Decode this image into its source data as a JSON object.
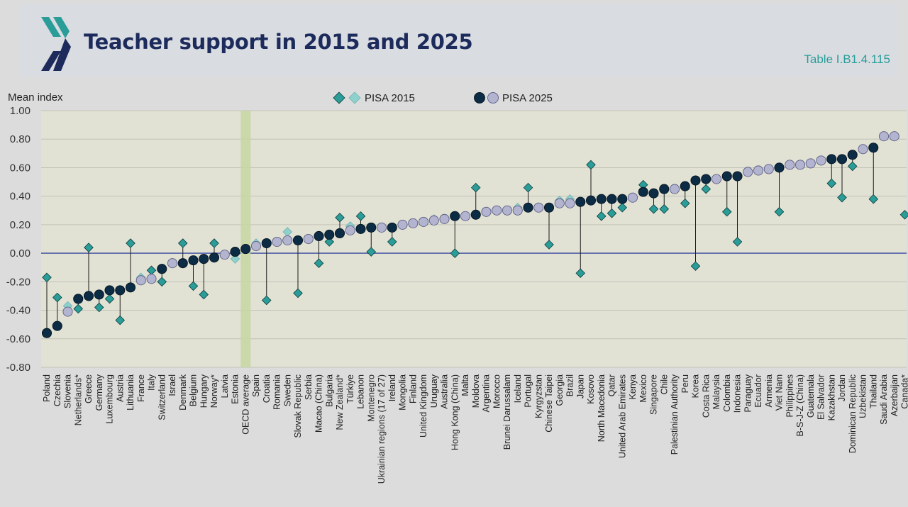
{
  "header": {
    "title": "Teacher support in 2015 and 2025",
    "table_ref": "Table I.B1.4.115"
  },
  "colors": {
    "teal": "#2a9d99",
    "teal_light": "#8fd0cd",
    "navy": "#0c2b45",
    "lavender": "#b3b4d0",
    "zero_line": "#3a4aa0",
    "plot_bg": "#e1e2d4",
    "oecd_band": "#c6d6a2",
    "grid": "#c2c2b8"
  },
  "chart_data": {
    "type": "scatter",
    "ylabel": "Mean index",
    "ylim": [
      -0.8,
      1.0
    ],
    "yticks": [
      1.0,
      0.8,
      0.6,
      0.4,
      0.2,
      0.0,
      -0.2,
      -0.4,
      -0.6,
      -0.8
    ],
    "ytick_labels": [
      "1.00",
      "0.80",
      "0.60",
      "0.40",
      "0.20",
      "0.00",
      "-0.20",
      "-0.40",
      "-0.60",
      "-0.80"
    ],
    "grid": true,
    "legend_position": "top-center",
    "legend": [
      "PISA 2015",
      "PISA 2025"
    ],
    "highlight_category": "OECD average",
    "categories": [
      "Poland",
      "Czechia",
      "Slovenia",
      "Netherlands*",
      "Greece",
      "Germany",
      "Luxembourg",
      "Austria",
      "Lithuania",
      "France",
      "Italy",
      "Switzerland",
      "Israel",
      "Denmark",
      "Belgium",
      "Hungary",
      "Norway*",
      "Latvia",
      "Estonia",
      "OECD average",
      "Spain",
      "Croatia",
      "Romania",
      "Sweden",
      "Slovak Republic",
      "Serbia",
      "Macao (China)",
      "Bulgaria",
      "New Zealand*",
      "Türkiye",
      "Lebanon",
      "Montenegro",
      "Ukrainian regions (17 of 27)",
      "Ireland",
      "Mongolia",
      "Finland",
      "United Kingdom",
      "Uruguay",
      "Australia",
      "Hong Kong (China)",
      "Malta",
      "Moldova",
      "Argentina",
      "Morocco",
      "Brunei Darussalam",
      "Iceland",
      "Portugal",
      "Kyrgyzstan",
      "Chinese Taipei",
      "Georgia",
      "Brazil",
      "Japan",
      "Kosovo",
      "North Macedonia",
      "Qatar",
      "United Arab Emirates",
      "Kenya",
      "Mexico",
      "Singapore",
      "Chile",
      "Palestinian Authority",
      "Peru",
      "Korea",
      "Costa Rica",
      "Malaysia",
      "Colombia",
      "Indonesia",
      "Paraguay",
      "Ecuador",
      "Armenia",
      "Viet Nam",
      "Philippines",
      "B-S-J-Z (China)",
      "Guatemala",
      "El Salvador",
      "Kazakhstan",
      "Jordan",
      "Dominican Republic",
      "Uzbekistan",
      "Thailand",
      "Saudi Arabia",
      "Azerbaijan",
      "Canada*"
    ],
    "series": [
      {
        "name": "PISA 2015",
        "values": [
          -0.17,
          -0.31,
          -0.37,
          -0.39,
          0.04,
          -0.38,
          -0.32,
          -0.47,
          0.07,
          -0.17,
          -0.12,
          -0.2,
          null,
          0.07,
          -0.23,
          -0.29,
          0.07,
          null,
          -0.04,
          0.03,
          0.07,
          -0.33,
          null,
          0.15,
          -0.28,
          null,
          -0.07,
          0.08,
          0.25,
          0.19,
          0.26,
          0.01,
          null,
          0.08,
          null,
          0.21,
          0.22,
          0.24,
          null,
          0.0,
          0.26,
          0.46,
          null,
          null,
          null,
          0.32,
          0.46,
          null,
          0.06,
          0.37,
          0.38,
          -0.14,
          0.62,
          0.26,
          0.28,
          0.32,
          null,
          0.48,
          0.31,
          0.31,
          null,
          0.35,
          -0.09,
          0.45,
          null,
          0.29,
          0.08,
          null,
          null,
          null,
          0.29,
          null,
          null,
          null,
          null,
          0.49,
          0.39,
          0.61,
          null,
          0.38,
          null,
          null,
          0.27
        ],
        "significant": [
          true,
          true,
          false,
          true,
          true,
          true,
          true,
          true,
          true,
          false,
          true,
          true,
          null,
          true,
          true,
          true,
          true,
          null,
          false,
          true,
          false,
          true,
          null,
          false,
          true,
          null,
          true,
          true,
          true,
          false,
          true,
          true,
          null,
          true,
          null,
          false,
          false,
          false,
          null,
          true,
          false,
          true,
          null,
          null,
          null,
          false,
          true,
          null,
          true,
          false,
          false,
          true,
          true,
          true,
          true,
          true,
          null,
          true,
          true,
          true,
          null,
          true,
          true,
          true,
          null,
          true,
          true,
          null,
          null,
          null,
          true,
          null,
          null,
          null,
          null,
          true,
          true,
          true,
          null,
          true,
          null,
          null,
          true
        ]
      },
      {
        "name": "PISA 2025",
        "values": [
          -0.56,
          -0.51,
          -0.41,
          -0.32,
          -0.3,
          -0.29,
          -0.26,
          -0.26,
          -0.24,
          -0.19,
          -0.18,
          -0.11,
          -0.07,
          -0.07,
          -0.05,
          -0.04,
          -0.03,
          -0.01,
          0.01,
          0.03,
          0.05,
          0.07,
          0.08,
          0.09,
          0.09,
          0.1,
          0.12,
          0.13,
          0.14,
          0.16,
          0.17,
          0.18,
          0.18,
          0.18,
          0.2,
          0.21,
          0.22,
          0.23,
          0.24,
          0.26,
          0.26,
          0.27,
          0.29,
          0.3,
          0.3,
          0.3,
          0.32,
          0.32,
          0.32,
          0.35,
          0.35,
          0.36,
          0.37,
          0.38,
          0.38,
          0.38,
          0.39,
          0.43,
          0.42,
          0.45,
          0.45,
          0.47,
          0.51,
          0.52,
          0.52,
          0.54,
          0.54,
          0.57,
          0.58,
          0.59,
          0.6,
          0.62,
          0.62,
          0.63,
          0.65,
          0.66,
          0.66,
          0.69,
          0.73,
          0.74,
          0.82,
          0.82,
          null
        ],
        "significant": [
          true,
          true,
          false,
          true,
          true,
          true,
          true,
          true,
          true,
          false,
          false,
          true,
          false,
          true,
          true,
          true,
          true,
          false,
          true,
          true,
          false,
          true,
          false,
          false,
          true,
          false,
          true,
          true,
          true,
          false,
          true,
          true,
          false,
          true,
          false,
          false,
          false,
          false,
          false,
          true,
          false,
          true,
          false,
          false,
          false,
          false,
          true,
          false,
          true,
          false,
          false,
          true,
          true,
          true,
          true,
          true,
          false,
          true,
          true,
          true,
          false,
          true,
          true,
          true,
          false,
          true,
          true,
          false,
          false,
          false,
          true,
          false,
          false,
          false,
          false,
          true,
          true,
          true,
          false,
          true,
          false,
          false,
          null
        ]
      }
    ]
  }
}
